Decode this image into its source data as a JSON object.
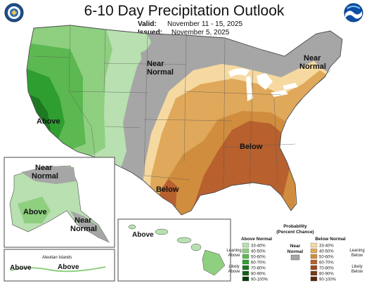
{
  "header": {
    "title": "6-10 Day Precipitation Outlook",
    "valid_label": "Valid:",
    "valid_value": "November 11 - 15, 2025",
    "issued_label": "Issued:",
    "issued_value": "November 5, 2025"
  },
  "logos": {
    "left": "doc-seal-logo",
    "right": "noaa-logo"
  },
  "map": {
    "labels": {
      "above_west": "Above",
      "near_normal_plains": "Near Normal",
      "near_normal_ne": "Near Normal",
      "below_se": "Below",
      "below_tx": "Below",
      "near_normal_ak_n": "Near Normal",
      "above_ak": "Above",
      "near_normal_ak_se": "Near Normal",
      "above_hi": "Above",
      "aleutian_title": "Aleutian Islands",
      "above_aleutian_left": "Above",
      "above_aleutian_right": "Above"
    },
    "colors": {
      "above_33": "#b8e0b0",
      "above_40": "#8fcf80",
      "above_50": "#5cb851",
      "above_60": "#2e9e30",
      "above_70": "#1d7a22",
      "above_80": "#145d18",
      "above_90": "#0a3d0e",
      "near": "#a6a6a6",
      "below_33": "#f5d9a0",
      "below_40": "#e0a85a",
      "below_50": "#d08d3e",
      "below_60": "#b8602e",
      "below_70": "#9a4a20",
      "below_80": "#7a3816",
      "below_90": "#5a260d",
      "water": "#ffffff",
      "border": "#4a4a4a"
    }
  },
  "legend": {
    "title_line1": "Probability",
    "title_line2": "(Percent Chance)",
    "above_header": "Above Normal",
    "below_header": "Below Normal",
    "near_label_1": "Near",
    "near_label_2": "Normal",
    "leaning_above_1": "Leaning",
    "leaning_above_2": "Above",
    "likely_above_1": "Likely",
    "likely_above_2": "Above",
    "leaning_below_1": "Leaning",
    "leaning_below_2": "Below",
    "likely_below_1": "Likely",
    "likely_below_2": "Below",
    "ranges": [
      "33-40%",
      "40-50%",
      "50-60%",
      "60-70%",
      "70-80%",
      "80-90%",
      "90-100%"
    ]
  }
}
